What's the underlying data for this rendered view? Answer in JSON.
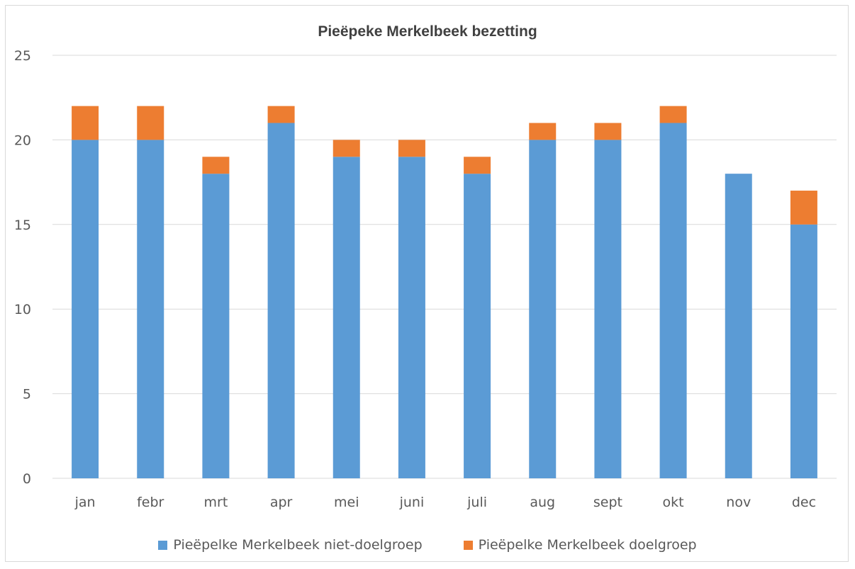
{
  "chart_data": {
    "type": "bar",
    "stacked": true,
    "title": "Pieëpeke Merkelbeek bezetting",
    "categories": [
      "jan",
      "febr",
      "mrt",
      "apr",
      "mei",
      "juni",
      "juli",
      "aug",
      "sept",
      "okt",
      "nov",
      "dec"
    ],
    "series": [
      {
        "name": "Pieëpelke Merkelbeek niet-doelgroep",
        "color": "#5b9bd5",
        "values": [
          20,
          20,
          18,
          21,
          19,
          19,
          18,
          20,
          20,
          21,
          18,
          15
        ]
      },
      {
        "name": "Pieëpelke Merkelbeek doelgroep",
        "color": "#ed7d31",
        "values": [
          2,
          2,
          1,
          1,
          1,
          1,
          1,
          1,
          1,
          1,
          0,
          2
        ]
      }
    ],
    "ylim": [
      0,
      25
    ],
    "yticks": [
      0,
      5,
      10,
      15,
      20,
      25
    ],
    "grid": true,
    "legend_position": "bottom"
  }
}
